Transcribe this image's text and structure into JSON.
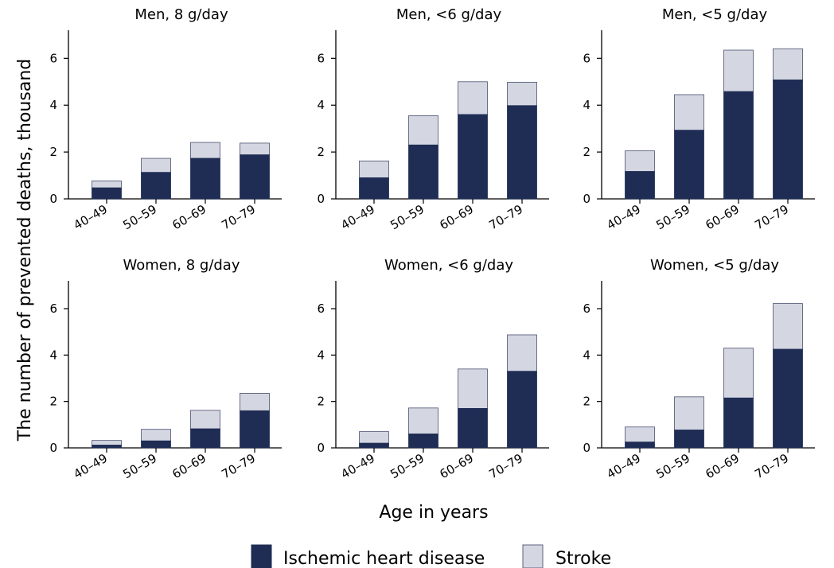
{
  "chart_data": {
    "type": "bar",
    "stacked": true,
    "ylabel": "The number of prevented deaths, thousand",
    "xlabel": "Age in years",
    "ylim": [
      0,
      7.2
    ],
    "yticks": [
      "0",
      "2",
      "4",
      "6"
    ],
    "categories": [
      "40–49",
      "50–59",
      "60–69",
      "70–79"
    ],
    "colors": {
      "Ischemic heart disease": "#1f2d55",
      "Stroke": "#d4d7e1"
    },
    "legend": {
      "position": "bottom-center",
      "entries": [
        "Ischemic heart disease",
        "Stroke"
      ]
    },
    "panels": [
      {
        "title": "Men, 8 g/day",
        "series": [
          {
            "name": "Ischemic heart disease",
            "values": [
              0.47,
              1.13,
              1.73,
              1.88
            ]
          },
          {
            "name": "Stroke",
            "values": [
              0.3,
              0.6,
              0.68,
              0.5
            ]
          }
        ]
      },
      {
        "title": "Men, <6 g/day",
        "series": [
          {
            "name": "Ischemic heart disease",
            "values": [
              0.9,
              2.3,
              3.6,
              3.98
            ]
          },
          {
            "name": "Stroke",
            "values": [
              0.72,
              1.25,
              1.4,
              1.0
            ]
          }
        ]
      },
      {
        "title": "Men, <5 g/day",
        "series": [
          {
            "name": "Ischemic heart disease",
            "values": [
              1.17,
              2.93,
              4.58,
              5.08
            ]
          },
          {
            "name": "Stroke",
            "values": [
              0.88,
              1.52,
              1.77,
              1.33
            ]
          }
        ]
      },
      {
        "title": "Women, 8 g/day",
        "series": [
          {
            "name": "Ischemic heart disease",
            "values": [
              0.12,
              0.3,
              0.82,
              1.6
            ]
          },
          {
            "name": "Stroke",
            "values": [
              0.2,
              0.5,
              0.8,
              0.75
            ]
          }
        ]
      },
      {
        "title": "Women, <6 g/day",
        "series": [
          {
            "name": "Ischemic heart disease",
            "values": [
              0.2,
              0.6,
              1.7,
              3.3
            ]
          },
          {
            "name": "Stroke",
            "values": [
              0.5,
              1.12,
              1.7,
              1.57
            ]
          }
        ]
      },
      {
        "title": "Women, <5 g/day",
        "series": [
          {
            "name": "Ischemic heart disease",
            "values": [
              0.25,
              0.77,
              2.15,
              4.25
            ]
          },
          {
            "name": "Stroke",
            "values": [
              0.65,
              1.43,
              2.15,
              1.97
            ]
          }
        ]
      }
    ]
  }
}
